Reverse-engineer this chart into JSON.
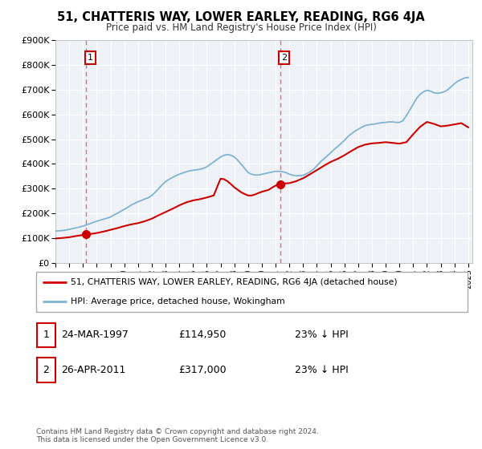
{
  "title": "51, CHATTERIS WAY, LOWER EARLEY, READING, RG6 4JA",
  "subtitle": "Price paid vs. HM Land Registry's House Price Index (HPI)",
  "legend_label_red": "51, CHATTERIS WAY, LOWER EARLEY, READING, RG6 4JA (detached house)",
  "legend_label_blue": "HPI: Average price, detached house, Wokingham",
  "point1_label": "1",
  "point1_date": "24-MAR-1997",
  "point1_price": "£114,950",
  "point1_hpi": "23% ↓ HPI",
  "point2_label": "2",
  "point2_date": "26-APR-2011",
  "point2_price": "£317,000",
  "point2_hpi": "23% ↓ HPI",
  "footer": "Contains HM Land Registry data © Crown copyright and database right 2024.\nThis data is licensed under the Open Government Licence v3.0.",
  "red_color": "#cc0000",
  "blue_color": "#7fb3d3",
  "dashed_red": "#e06060",
  "plot_bg": "#eef2f7",
  "ylim": [
    0,
    900000
  ],
  "yticks": [
    0,
    100000,
    200000,
    300000,
    400000,
    500000,
    600000,
    700000,
    800000,
    900000
  ],
  "ytick_labels": [
    "£0",
    "£100K",
    "£200K",
    "£300K",
    "£400K",
    "£500K",
    "£600K",
    "£700K",
    "£800K",
    "£900K"
  ],
  "xlim_start": 1995.0,
  "xlim_end": 2025.3,
  "point1_x": 1997.23,
  "point1_y": 114950,
  "point2_x": 2011.32,
  "point2_y": 317000,
  "vline1_x": 1997.23,
  "vline2_x": 2011.32,
  "hpi_years": [
    1995.0,
    1995.25,
    1995.5,
    1995.75,
    1996.0,
    1996.25,
    1996.5,
    1996.75,
    1997.0,
    1997.25,
    1997.5,
    1997.75,
    1998.0,
    1998.25,
    1998.5,
    1998.75,
    1999.0,
    1999.25,
    1999.5,
    1999.75,
    2000.0,
    2000.25,
    2000.5,
    2000.75,
    2001.0,
    2001.25,
    2001.5,
    2001.75,
    2002.0,
    2002.25,
    2002.5,
    2002.75,
    2003.0,
    2003.25,
    2003.5,
    2003.75,
    2004.0,
    2004.25,
    2004.5,
    2004.75,
    2005.0,
    2005.25,
    2005.5,
    2005.75,
    2006.0,
    2006.25,
    2006.5,
    2006.75,
    2007.0,
    2007.25,
    2007.5,
    2007.75,
    2008.0,
    2008.25,
    2008.5,
    2008.75,
    2009.0,
    2009.25,
    2009.5,
    2009.75,
    2010.0,
    2010.25,
    2010.5,
    2010.75,
    2011.0,
    2011.25,
    2011.5,
    2011.75,
    2012.0,
    2012.25,
    2012.5,
    2012.75,
    2013.0,
    2013.25,
    2013.5,
    2013.75,
    2014.0,
    2014.25,
    2014.5,
    2014.75,
    2015.0,
    2015.25,
    2015.5,
    2015.75,
    2016.0,
    2016.25,
    2016.5,
    2016.75,
    2017.0,
    2017.25,
    2017.5,
    2017.75,
    2018.0,
    2018.25,
    2018.5,
    2018.75,
    2019.0,
    2019.25,
    2019.5,
    2019.75,
    2020.0,
    2020.25,
    2020.5,
    2020.75,
    2021.0,
    2021.25,
    2021.5,
    2021.75,
    2022.0,
    2022.25,
    2022.5,
    2022.75,
    2023.0,
    2023.25,
    2023.5,
    2023.75,
    2024.0,
    2024.25,
    2024.5,
    2024.75,
    2025.0
  ],
  "hpi_values": [
    128000,
    129000,
    130000,
    132000,
    135000,
    138000,
    141000,
    144000,
    148000,
    153000,
    158000,
    163000,
    168000,
    172000,
    176000,
    180000,
    185000,
    193000,
    200000,
    208000,
    216000,
    224000,
    233000,
    240000,
    247000,
    252000,
    258000,
    263000,
    272000,
    285000,
    300000,
    315000,
    328000,
    337000,
    345000,
    352000,
    358000,
    363000,
    368000,
    372000,
    374000,
    376000,
    378000,
    382000,
    388000,
    398000,
    408000,
    418000,
    428000,
    435000,
    438000,
    435000,
    428000,
    415000,
    398000,
    382000,
    365000,
    358000,
    355000,
    355000,
    358000,
    361000,
    364000,
    367000,
    370000,
    370000,
    368000,
    365000,
    358000,
    354000,
    352000,
    352000,
    354000,
    360000,
    368000,
    378000,
    392000,
    408000,
    420000,
    432000,
    445000,
    458000,
    470000,
    482000,
    495000,
    510000,
    522000,
    532000,
    540000,
    548000,
    555000,
    558000,
    560000,
    562000,
    565000,
    567000,
    568000,
    570000,
    570000,
    568000,
    568000,
    575000,
    595000,
    618000,
    642000,
    665000,
    682000,
    692000,
    698000,
    695000,
    688000,
    686000,
    688000,
    692000,
    700000,
    712000,
    725000,
    735000,
    742000,
    748000,
    750000
  ],
  "red_years": [
    1995.0,
    1995.5,
    1996.0,
    1996.5,
    1997.0,
    1997.23,
    1997.5,
    1998.0,
    1998.5,
    1999.0,
    1999.5,
    2000.0,
    2000.5,
    2001.0,
    2001.5,
    2002.0,
    2002.5,
    2003.0,
    2003.5,
    2004.0,
    2004.5,
    2005.0,
    2005.5,
    2006.0,
    2006.5,
    2007.0,
    2007.25,
    2007.5,
    2007.75,
    2008.0,
    2008.25,
    2008.5,
    2008.75,
    2009.0,
    2009.25,
    2009.5,
    2009.75,
    2010.0,
    2010.25,
    2010.5,
    2010.75,
    2011.0,
    2011.32,
    2011.5,
    2012.0,
    2012.5,
    2013.0,
    2013.5,
    2014.0,
    2014.5,
    2015.0,
    2015.5,
    2016.0,
    2016.5,
    2017.0,
    2017.5,
    2018.0,
    2018.5,
    2019.0,
    2019.5,
    2020.0,
    2020.5,
    2021.0,
    2021.5,
    2022.0,
    2022.5,
    2023.0,
    2023.5,
    2024.0,
    2024.5,
    2025.0
  ],
  "red_values": [
    98000,
    100000,
    103000,
    108000,
    112000,
    114950,
    116000,
    120000,
    126000,
    133000,
    140000,
    148000,
    155000,
    160000,
    168000,
    178000,
    192000,
    205000,
    218000,
    232000,
    244000,
    252000,
    257000,
    264000,
    272000,
    340000,
    338000,
    330000,
    318000,
    305000,
    295000,
    285000,
    278000,
    272000,
    272000,
    276000,
    282000,
    287000,
    291000,
    295000,
    304000,
    312000,
    317000,
    320000,
    322000,
    330000,
    342000,
    358000,
    375000,
    392000,
    408000,
    420000,
    435000,
    452000,
    468000,
    478000,
    483000,
    485000,
    488000,
    485000,
    482000,
    488000,
    520000,
    550000,
    570000,
    562000,
    552000,
    555000,
    560000,
    565000,
    548000
  ]
}
